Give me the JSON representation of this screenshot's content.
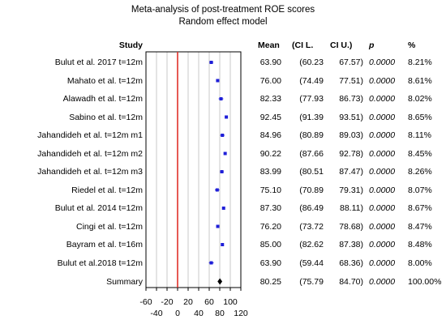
{
  "title_line1": "Meta-analysis of post-treatment ROE scores",
  "title_line2": "Random effect model",
  "headers": {
    "study": "Study",
    "mean": "Mean",
    "cil": "(CI L.",
    "ciu": "CI U.)",
    "p": "p",
    "pct": "%"
  },
  "chart_data": {
    "type": "forest",
    "xlim": [
      -60,
      120
    ],
    "xticks": [
      -60,
      -40,
      -20,
      0,
      20,
      40,
      60,
      80,
      100,
      120
    ],
    "reference_line": 0,
    "grid": true,
    "studies": [
      {
        "label": "Bulut et al. 2017 t=12m",
        "mean": 63.9,
        "lo": 60.23,
        "hi": 67.57,
        "mean_txt": "63.90",
        "lo_txt": "(60.23",
        "hi_txt": "67.57)",
        "p": "0.0000",
        "pct": "8.21%"
      },
      {
        "label": "Mahato et al. t=12m",
        "mean": 76.0,
        "lo": 74.49,
        "hi": 77.51,
        "mean_txt": "76.00",
        "lo_txt": "(74.49",
        "hi_txt": "77.51)",
        "p": "0.0000",
        "pct": "8.61%"
      },
      {
        "label": "Alawadh et al. t=12m",
        "mean": 82.33,
        "lo": 77.93,
        "hi": 86.73,
        "mean_txt": "82.33",
        "lo_txt": "(77.93",
        "hi_txt": "86.73)",
        "p": "0.0000",
        "pct": "8.02%"
      },
      {
        "label": "Sabino et al. t=12m",
        "mean": 92.45,
        "lo": 91.39,
        "hi": 93.51,
        "mean_txt": "92.45",
        "lo_txt": "(91.39",
        "hi_txt": "93.51)",
        "p": "0.0000",
        "pct": "8.65%"
      },
      {
        "label": "Jahandideh et al. t=12m m1",
        "mean": 84.96,
        "lo": 80.89,
        "hi": 89.03,
        "mean_txt": "84.96",
        "lo_txt": "(80.89",
        "hi_txt": "89.03)",
        "p": "0.0000",
        "pct": "8.11%"
      },
      {
        "label": "Jahandideh et al. t=12m m2",
        "mean": 90.22,
        "lo": 87.66,
        "hi": 92.78,
        "mean_txt": "90.22",
        "lo_txt": "(87.66",
        "hi_txt": "92.78)",
        "p": "0.0000",
        "pct": "8.45%"
      },
      {
        "label": "Jahandideh et al. t=12m m3",
        "mean": 83.99,
        "lo": 80.51,
        "hi": 87.47,
        "mean_txt": "83.99",
        "lo_txt": "(80.51",
        "hi_txt": "87.47)",
        "p": "0.0000",
        "pct": "8.26%"
      },
      {
        "label": "Riedel et al. t=12m",
        "mean": 75.1,
        "lo": 70.89,
        "hi": 79.31,
        "mean_txt": "75.10",
        "lo_txt": "(70.89",
        "hi_txt": "79.31)",
        "p": "0.0000",
        "pct": "8.07%"
      },
      {
        "label": "Bulut et al. 2014 t=12m",
        "mean": 87.3,
        "lo": 86.49,
        "hi": 88.11,
        "mean_txt": "87.30",
        "lo_txt": "(86.49",
        "hi_txt": "88.11)",
        "p": "0.0000",
        "pct": "8.67%"
      },
      {
        "label": "Cingi et al. t=12m",
        "mean": 76.2,
        "lo": 73.72,
        "hi": 78.68,
        "mean_txt": "76.20",
        "lo_txt": "(73.72",
        "hi_txt": "78.68)",
        "p": "0.0000",
        "pct": "8.47%"
      },
      {
        "label": "Bayram et al. t=16m",
        "mean": 85.0,
        "lo": 82.62,
        "hi": 87.38,
        "mean_txt": "85.00",
        "lo_txt": "(82.62",
        "hi_txt": "87.38)",
        "p": "0.0000",
        "pct": "8.48%"
      },
      {
        "label": "Bulut et al.2018 t=12m",
        "mean": 63.9,
        "lo": 59.44,
        "hi": 68.36,
        "mean_txt": "63.90",
        "lo_txt": "(59.44",
        "hi_txt": "68.36)",
        "p": "0.0000",
        "pct": "8.00%"
      }
    ],
    "summary": {
      "label": "Summary",
      "mean": 80.25,
      "lo": 75.79,
      "hi": 84.7,
      "mean_txt": "80.25",
      "lo_txt": "(75.79",
      "hi_txt": "84.70)",
      "p": "0.0000",
      "pct": "100.00%"
    },
    "colors": {
      "point": "#1f1fd8",
      "summary": "#000000",
      "reference": "#e0302a",
      "grid": "#c8c8c8",
      "frame": "#000000"
    }
  }
}
